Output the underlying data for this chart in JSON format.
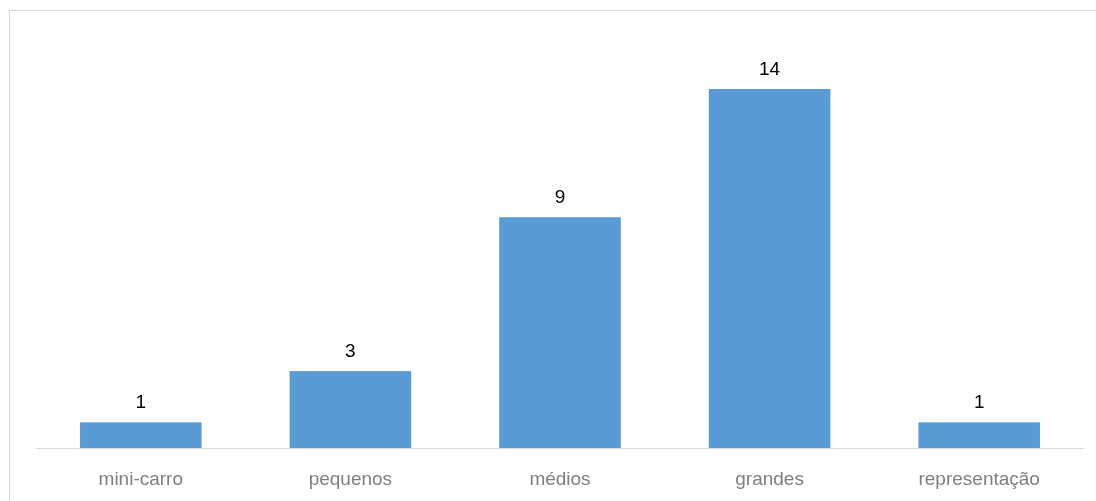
{
  "chart_data": {
    "type": "bar",
    "categories": [
      "mini-carro",
      "pequenos",
      "médios",
      "grandes",
      "representação"
    ],
    "values": [
      1,
      3,
      9,
      14,
      1
    ],
    "color": "#5b9bd5",
    "data_labels": true,
    "tick_labels": "x"
  }
}
